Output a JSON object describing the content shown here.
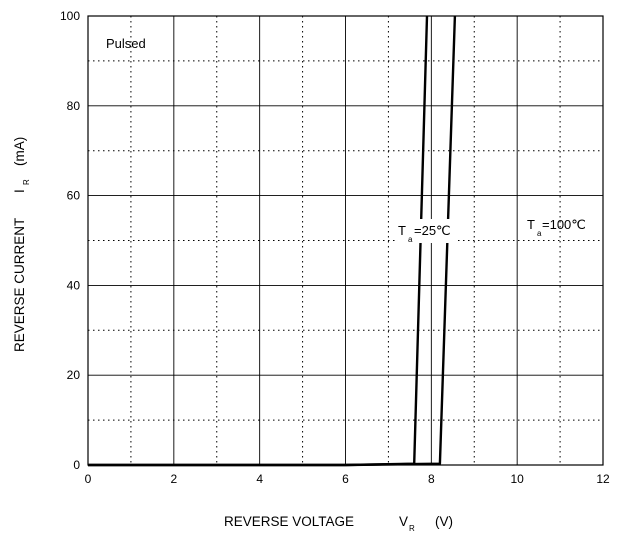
{
  "chart_data": {
    "type": "line",
    "xlim": [
      0,
      12
    ],
    "ylim": [
      0,
      100
    ],
    "x_ticks": [
      "0",
      "2",
      "4",
      "6",
      "8",
      "10",
      "12"
    ],
    "y_ticks": [
      "0",
      "20",
      "40",
      "60",
      "80",
      "100"
    ],
    "grid": "major solid, minor dotted",
    "xlabel": {
      "main": "REVERSE VOLTAGE",
      "symbol": "V",
      "subscript": "R",
      "unit": "(V)"
    },
    "ylabel": {
      "main": "REVERSE CURRENT",
      "symbol": "I",
      "subscript": "R",
      "unit": "(mA)"
    },
    "annotations": {
      "pulsed": "Pulsed",
      "series_1": {
        "symbol": "T",
        "subscript": "a",
        "value": "=25℃"
      },
      "series_2": {
        "symbol": "T",
        "subscript": "a",
        "value": "=100℃"
      }
    },
    "series": [
      {
        "points": [
          [
            0,
            0
          ],
          [
            6.0,
            0
          ],
          [
            7.6,
            0.3
          ],
          [
            7.9,
            100
          ]
        ]
      },
      {
        "points": [
          [
            0,
            0
          ],
          [
            6.0,
            0
          ],
          [
            8.2,
            0.3
          ],
          [
            8.55,
            100
          ]
        ]
      }
    ]
  }
}
